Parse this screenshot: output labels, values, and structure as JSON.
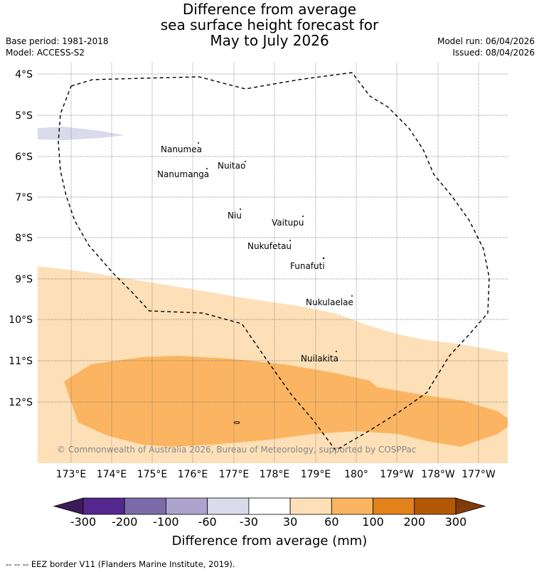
{
  "title": {
    "line1": "Difference from average",
    "line2": "sea surface height forecast for",
    "line3": "May to July 2026"
  },
  "meta": {
    "base_period": "Base period: 1981-2018",
    "model": "Model: ACCESS-S2",
    "model_run": "Model run: 06/04/2026",
    "issued": "Issued: 08/04/2026"
  },
  "map": {
    "lat_labels": [
      "4°S",
      "5°S",
      "6°S",
      "7°S",
      "8°S",
      "9°S",
      "10°S",
      "11°S",
      "12°S"
    ],
    "lon_labels": [
      "173°E",
      "174°E",
      "175°E",
      "176°E",
      "177°E",
      "178°E",
      "179°E",
      "180°",
      "179°W",
      "178°W",
      "177°W"
    ],
    "places": [
      {
        "name": "Nanumea"
      },
      {
        "name": "Nuitao"
      },
      {
        "name": "Nanumanga"
      },
      {
        "name": "Niu"
      },
      {
        "name": "Vaitupu"
      },
      {
        "name": "Nukufetau"
      },
      {
        "name": "Funafuti"
      },
      {
        "name": "Nukulaelae"
      },
      {
        "name": "Nuilakita"
      }
    ],
    "copyright": "© Commonwealth of Australia 2026, Bureau of Meteorology, supported by COSPPac"
  },
  "colorbar": {
    "colors": [
      "#3d1a5a",
      "#54278f",
      "#7b6ba9",
      "#aca4cc",
      "#dadaeb",
      "#ffffff",
      "#fde0b8",
      "#fbb562",
      "#e2821a",
      "#b35806",
      "#7f3b08"
    ],
    "ticks": [
      "-300",
      "-200",
      "-100",
      "-60",
      "-30",
      "30",
      "60",
      "100",
      "200",
      "300"
    ],
    "label": "Difference from average (mm)"
  },
  "legend": {
    "symbol": "--  --  --",
    "text": "EEZ border V11 (Flanders Marine Institute, 2019)."
  }
}
